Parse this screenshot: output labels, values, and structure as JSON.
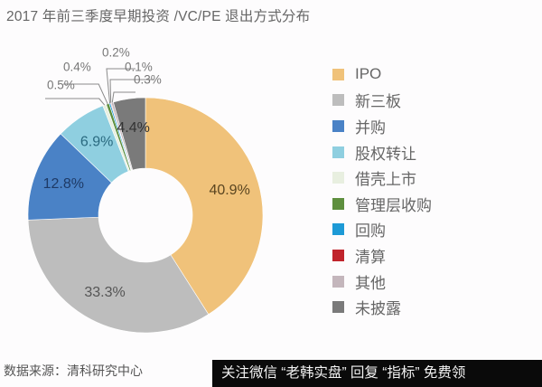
{
  "title": "2017 年前三季度早期投资 /VC/PE 退出方式分布",
  "source": "数据来源：清科研究中心",
  "banner": "关注微信 “老韩实盘” 回复 “指标” 免费领",
  "chart_data": {
    "type": "pie",
    "variant": "donut",
    "title": "2017 年前三季度早期投资 /VC/PE 退出方式分布",
    "start_angle": "12 o'clock, clockwise",
    "legend_position": "right",
    "categories": [
      "IPO",
      "新三板",
      "并购",
      "股权转让",
      "借壳上市",
      "管理层收购",
      "回购",
      "清算",
      "其他",
      "未披露"
    ],
    "values": [
      40.9,
      33.3,
      12.8,
      6.9,
      0.5,
      0.4,
      0.2,
      0.1,
      0.3,
      4.4
    ],
    "labels": [
      "40.9%",
      "33.3%",
      "12.8%",
      "6.9%",
      "0.5%",
      "0.4%",
      "0.2%",
      "0.1%",
      "0.3%",
      "4.4%"
    ],
    "colors": [
      "#f0c27a",
      "#bdbdbd",
      "#4a82c6",
      "#8fcfe0",
      "#e8efe0",
      "#5e8f3e",
      "#1d9ad6",
      "#c0242c",
      "#c4b6bc",
      "#7a7a7a"
    ],
    "unit": "%"
  },
  "legend": [
    {
      "label": "IPO",
      "color": "#f0c27a"
    },
    {
      "label": "新三板",
      "color": "#bdbdbd"
    },
    {
      "label": "并购",
      "color": "#4a82c6"
    },
    {
      "label": "股权转让",
      "color": "#8fcfe0"
    },
    {
      "label": "借壳上市",
      "color": "#e8efe0"
    },
    {
      "label": "管理层收购",
      "color": "#5e8f3e"
    },
    {
      "label": "回购",
      "color": "#1d9ad6"
    },
    {
      "label": "清算",
      "color": "#c0242c"
    },
    {
      "label": "其他",
      "color": "#c4b6bc"
    },
    {
      "label": "未披露",
      "color": "#7a7a7a"
    }
  ]
}
